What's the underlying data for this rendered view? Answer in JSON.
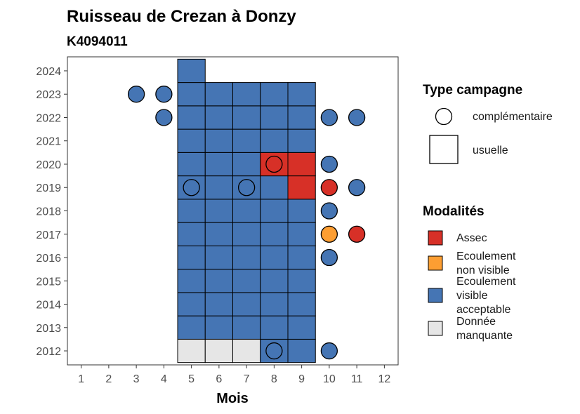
{
  "chart_data": {
    "type": "heatmap",
    "title": "Ruisseau de Crezan à Donzy",
    "subtitle": "K4094011",
    "xlabel": "Mois",
    "ylabel": "",
    "x_ticks": [
      1,
      2,
      3,
      4,
      5,
      6,
      7,
      8,
      9,
      10,
      11,
      12
    ],
    "y_ticks": [
      2012,
      2013,
      2014,
      2015,
      2016,
      2017,
      2018,
      2019,
      2020,
      2021,
      2022,
      2023,
      2024
    ],
    "xlim": [
      0.5,
      12.5
    ],
    "ylim": [
      2011.4,
      2024.6
    ],
    "grid": false,
    "legend_position": "right",
    "legend_type": {
      "title": "Type campagne",
      "items": [
        {
          "shape": "circle",
          "label": "complémentaire"
        },
        {
          "shape": "square",
          "label": "usuelle"
        }
      ]
    },
    "legend_modalites": {
      "title": "Modalités",
      "items": [
        {
          "key": "assec",
          "label": [
            "Assec"
          ],
          "color": "#d73027"
        },
        {
          "key": "nonvisible",
          "label": [
            "Ecoulement",
            "non visible"
          ],
          "color": "#fd9e32"
        },
        {
          "key": "visible",
          "label": [
            "Ecoulement",
            "visible",
            "acceptable"
          ],
          "color": "#4575b4"
        },
        {
          "key": "manquante",
          "label": [
            "Donnée",
            "manquante"
          ],
          "color": "#e6e6e6"
        }
      ]
    },
    "usuelle": [
      {
        "year": 2012,
        "months": [
          5,
          6,
          7
        ],
        "modalite": "manquante"
      },
      {
        "year": 2012,
        "months": [
          8,
          9
        ],
        "modalite": "visible"
      },
      {
        "year": 2013,
        "months": [
          5,
          6,
          7,
          8,
          9
        ],
        "modalite": "visible"
      },
      {
        "year": 2014,
        "months": [
          5,
          6,
          7,
          8,
          9
        ],
        "modalite": "visible"
      },
      {
        "year": 2015,
        "months": [
          5,
          6,
          7,
          8,
          9
        ],
        "modalite": "visible"
      },
      {
        "year": 2016,
        "months": [
          5,
          6,
          7,
          8,
          9
        ],
        "modalite": "visible"
      },
      {
        "year": 2017,
        "months": [
          5,
          6,
          7,
          8,
          9
        ],
        "modalite": "visible"
      },
      {
        "year": 2018,
        "months": [
          5,
          6,
          7,
          8,
          9
        ],
        "modalite": "visible"
      },
      {
        "year": 2019,
        "months": [
          5,
          6,
          7,
          8
        ],
        "modalite": "visible"
      },
      {
        "year": 2019,
        "months": [
          9
        ],
        "modalite": "assec"
      },
      {
        "year": 2020,
        "months": [
          5,
          6,
          7
        ],
        "modalite": "visible"
      },
      {
        "year": 2020,
        "months": [
          8,
          9
        ],
        "modalite": "assec"
      },
      {
        "year": 2021,
        "months": [
          5,
          6,
          7,
          8,
          9
        ],
        "modalite": "visible"
      },
      {
        "year": 2022,
        "months": [
          5,
          6,
          7,
          8,
          9
        ],
        "modalite": "visible"
      },
      {
        "year": 2023,
        "months": [
          5,
          6,
          7,
          8,
          9
        ],
        "modalite": "visible"
      },
      {
        "year": 2024,
        "months": [
          5
        ],
        "modalite": "visible"
      }
    ],
    "complementaire": [
      {
        "year": 2012,
        "month": 8,
        "modalite": "visible"
      },
      {
        "year": 2012,
        "month": 10,
        "modalite": "visible"
      },
      {
        "year": 2016,
        "month": 10,
        "modalite": "visible"
      },
      {
        "year": 2017,
        "month": 10,
        "modalite": "nonvisible"
      },
      {
        "year": 2017,
        "month": 11,
        "modalite": "assec"
      },
      {
        "year": 2018,
        "month": 10,
        "modalite": "visible"
      },
      {
        "year": 2019,
        "month": 5,
        "modalite": "visible"
      },
      {
        "year": 2019,
        "month": 7,
        "modalite": "visible"
      },
      {
        "year": 2019,
        "month": 10,
        "modalite": "assec"
      },
      {
        "year": 2019,
        "month": 11,
        "modalite": "visible"
      },
      {
        "year": 2020,
        "month": 8,
        "modalite": "assec"
      },
      {
        "year": 2020,
        "month": 10,
        "modalite": "visible"
      },
      {
        "year": 2022,
        "month": 4,
        "modalite": "visible"
      },
      {
        "year": 2022,
        "month": 10,
        "modalite": "visible"
      },
      {
        "year": 2022,
        "month": 11,
        "modalite": "visible"
      },
      {
        "year": 2023,
        "month": 3,
        "modalite": "visible"
      },
      {
        "year": 2023,
        "month": 4,
        "modalite": "visible"
      }
    ]
  }
}
